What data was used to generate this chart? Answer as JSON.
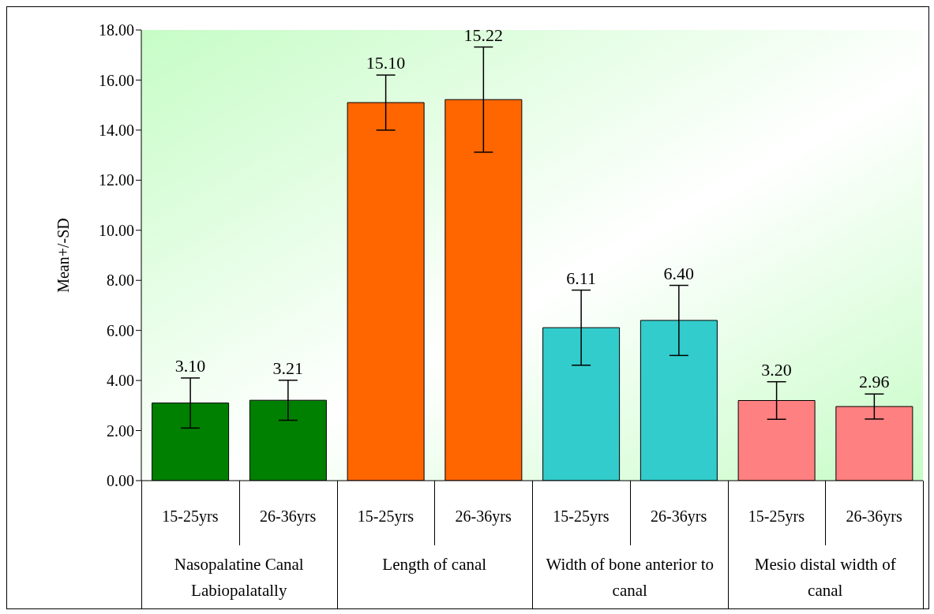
{
  "chart_data": {
    "type": "bar",
    "ylabel": "Mean+/-SD",
    "categories": [
      "15-25yrs",
      "26-36yrs",
      "15-25yrs",
      "26-36yrs",
      "15-25yrs",
      "26-36yrs",
      "15-25yrs",
      "26-36yrs"
    ],
    "values": [
      3.1,
      3.21,
      15.1,
      15.22,
      6.11,
      6.4,
      3.2,
      2.96
    ],
    "errors": [
      1.0,
      0.8,
      1.1,
      2.1,
      1.5,
      1.4,
      0.75,
      0.5
    ],
    "colors": [
      "#008000",
      "#008000",
      "#ff6600",
      "#ff6600",
      "#33cccc",
      "#33cccc",
      "#ff8080",
      "#ff8080"
    ],
    "ylim": [
      0,
      18
    ],
    "yticks": [
      {
        "value": 0,
        "label": "0.00"
      },
      {
        "value": 2,
        "label": "2.00"
      },
      {
        "value": 4,
        "label": "4.00"
      },
      {
        "value": 6,
        "label": "6.00"
      },
      {
        "value": 8,
        "label": "8.00"
      },
      {
        "value": 10,
        "label": "10.00"
      },
      {
        "value": 12,
        "label": "12.00"
      },
      {
        "value": 14,
        "label": "14.00"
      },
      {
        "value": 16,
        "label": "16.00"
      },
      {
        "value": 18,
        "label": "18.00"
      }
    ],
    "value_labels": [
      "3.10",
      "3.21",
      "15.10",
      "15.22",
      "6.11",
      "6.40",
      "3.20",
      "2.96"
    ],
    "annotations": [
      "Nasopalatine Canal Labiopalatally",
      "Length of canal",
      "Width of bone anterior to canal",
      "Mesio distal width of canal"
    ]
  }
}
